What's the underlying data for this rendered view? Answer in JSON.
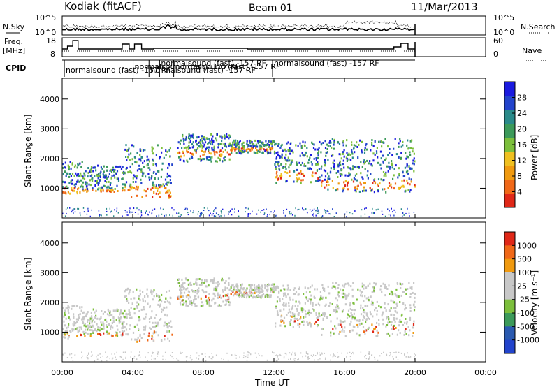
{
  "header": {
    "station": "Kodiak (fitACF)",
    "beam": "Beam 01",
    "date": "11/Mar/2013"
  },
  "side_labels": {
    "nsky": "N.Sky",
    "freq_line1": "Freq.",
    "freq_line2": "[MHz]",
    "cpid": "CPID",
    "nsearch": "N.Search",
    "nave": "Nave"
  },
  "noise_panel": {
    "left_ticks": [
      "10^5",
      "10^0"
    ],
    "right_ticks": [
      "10^5",
      "10^0"
    ]
  },
  "freq_panel": {
    "left_ticks": [
      "18",
      "8"
    ],
    "right_ticks": [
      "60",
      "0"
    ]
  },
  "cpid_labels": [
    {
      "text": "normalsound (fast) -157 RF",
      "t": 0.2
    },
    {
      "text": "normalsound (fast) -157 RF",
      "t": 4.1
    },
    {
      "text": "normalsound (fast) -157 RF",
      "t": 5.0
    },
    {
      "text": "normalsound (fast) -157 RF",
      "t": 5.6
    },
    {
      "text": "normalsound (fast) -157 RF",
      "t": 6.4
    },
    {
      "text": "normalsound (fast) -157 RF",
      "t": 12.0
    }
  ],
  "x_axis": {
    "label": "Time UT",
    "ticks": [
      "00:00",
      "04:00",
      "08:00",
      "12:00",
      "16:00",
      "20:00",
      "00:00"
    ]
  },
  "colors": {
    "power_scale": [
      "#1a1adf",
      "#2244cc",
      "#2a8a8a",
      "#3c9a5a",
      "#7cbf3c",
      "#f0c020",
      "#f09a10",
      "#f06818",
      "#e02818"
    ],
    "velocity_scale": [
      "#2244cc",
      "#2a5ab0",
      "#3c9a5a",
      "#7cbf3c",
      "#c8c8c8",
      "#c8c8c8",
      "#f09a10",
      "#f06818",
      "#e02818"
    ]
  },
  "chart_data": [
    {
      "type": "heatmap",
      "panel": "power",
      "ylabel": "Slant Range [km]",
      "y_ticks": [
        "1000",
        "2000",
        "3000",
        "4000"
      ],
      "ylim": [
        0,
        4700
      ],
      "xlim": [
        "00:00",
        "24:00"
      ],
      "colorbar": {
        "label": "Power [dB]",
        "ticks": [
          "28",
          "24",
          "20",
          "16",
          "12",
          "8",
          "4"
        ],
        "range": [
          0,
          32
        ]
      },
      "scatter_bands": [
        {
          "t_start": 0.0,
          "t_end": 1.1,
          "r_low": 800,
          "r_high": 1950,
          "strong_low": 850,
          "strong_high": 1050
        },
        {
          "t_start": 1.1,
          "t_end": 3.5,
          "r_low": 900,
          "r_high": 1800,
          "strong_low": 900,
          "strong_high": 1000
        },
        {
          "t_start": 3.5,
          "t_end": 6.2,
          "r_low": 700,
          "r_high": 2500,
          "strong_low": 650,
          "strong_high": 1100
        },
        {
          "t_start": 6.5,
          "t_end": 9.5,
          "r_low": 1900,
          "r_high": 2850,
          "strong_low": 2100,
          "strong_high": 2300
        },
        {
          "t_start": 9.5,
          "t_end": 12.0,
          "r_low": 2200,
          "r_high": 2650,
          "strong_low": 2300,
          "strong_high": 2400
        },
        {
          "t_start": 12.0,
          "t_end": 14.5,
          "r_low": 1200,
          "r_high": 2600,
          "strong_low": 1300,
          "strong_high": 1600
        },
        {
          "t_start": 14.5,
          "t_end": 20.0,
          "r_low": 900,
          "r_high": 2700,
          "strong_low": 1000,
          "strong_high": 1300
        }
      ]
    },
    {
      "type": "heatmap",
      "panel": "velocity",
      "ylabel": "Slant Range [km]",
      "y_ticks": [
        "1000",
        "2000",
        "3000",
        "4000"
      ],
      "ylim": [
        0,
        4700
      ],
      "xlim": [
        "00:00",
        "24:00"
      ],
      "colorbar": {
        "label": "Velocity [m s⁻¹]",
        "ticks": [
          "1000",
          "500",
          "100",
          "25",
          "-25",
          "-100",
          "-500",
          "-1000"
        ],
        "range": [
          -1200,
          1200
        ]
      },
      "scatter_bands": [
        {
          "t_start": 0.0,
          "t_end": 1.1,
          "r_low": 800,
          "r_high": 1950,
          "strong_low": 850,
          "strong_high": 1050
        },
        {
          "t_start": 1.1,
          "t_end": 3.5,
          "r_low": 900,
          "r_high": 1800,
          "strong_low": 900,
          "strong_high": 1000
        },
        {
          "t_start": 3.5,
          "t_end": 6.2,
          "r_low": 700,
          "r_high": 2500,
          "strong_low": 650,
          "strong_high": 1100
        },
        {
          "t_start": 6.5,
          "t_end": 9.5,
          "r_low": 1900,
          "r_high": 2850,
          "strong_low": 2100,
          "strong_high": 2300
        },
        {
          "t_start": 9.5,
          "t_end": 12.0,
          "r_low": 2200,
          "r_high": 2650,
          "strong_low": 2300,
          "strong_high": 2400
        },
        {
          "t_start": 12.0,
          "t_end": 14.5,
          "r_low": 1200,
          "r_high": 2600,
          "strong_low": 1300,
          "strong_high": 1600
        },
        {
          "t_start": 14.5,
          "t_end": 20.0,
          "r_low": 900,
          "r_high": 2700,
          "strong_low": 1000,
          "strong_high": 1300
        }
      ]
    }
  ]
}
